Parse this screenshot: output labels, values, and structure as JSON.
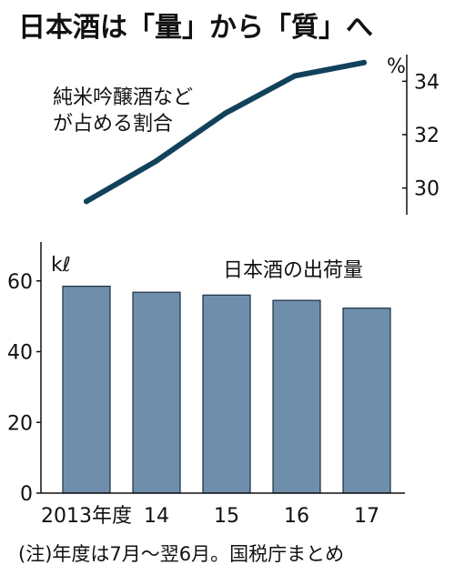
{
  "title": "日本酒は「量」から「質」へ",
  "note": "(注)年度は7月〜翌6月。国税庁まとめ",
  "chart_data": [
    {
      "type": "line",
      "label_lines": [
        "純米吟醸酒など",
        "が占める割合"
      ],
      "ylabel": "%",
      "x": [
        "2013年度",
        "14",
        "15",
        "16",
        "17"
      ],
      "values": [
        29.5,
        31.0,
        32.8,
        34.2,
        34.7
      ],
      "ylim": [
        29,
        35
      ],
      "yticks": [
        30,
        32,
        34
      ],
      "color": "#12425b",
      "grid": false
    },
    {
      "type": "bar",
      "label": "日本酒の出荷量",
      "ylabel": "kℓ",
      "categories": [
        "2013年度",
        "14",
        "15",
        "16",
        "17"
      ],
      "values": [
        58.5,
        56.8,
        56.0,
        54.5,
        52.3
      ],
      "ylim": [
        0,
        71
      ],
      "yticks": [
        0,
        20,
        40,
        60
      ],
      "bar_color": "#6f8eab",
      "grid": false
    }
  ]
}
